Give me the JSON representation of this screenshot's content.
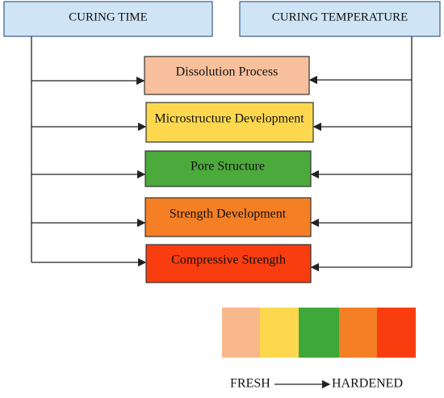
{
  "inputs": [
    {
      "label": "CURING TIME"
    },
    {
      "label": "CURING TEMPERATURE"
    }
  ],
  "nodes": [
    {
      "label": "Dissolution Process"
    },
    {
      "label": "Microstructure Development"
    },
    {
      "label": "Pore Structure"
    },
    {
      "label": "Strength Development"
    },
    {
      "label": "Compressive Strength"
    }
  ],
  "scale": {
    "start": "FRESH",
    "end": "HARDENED"
  }
}
